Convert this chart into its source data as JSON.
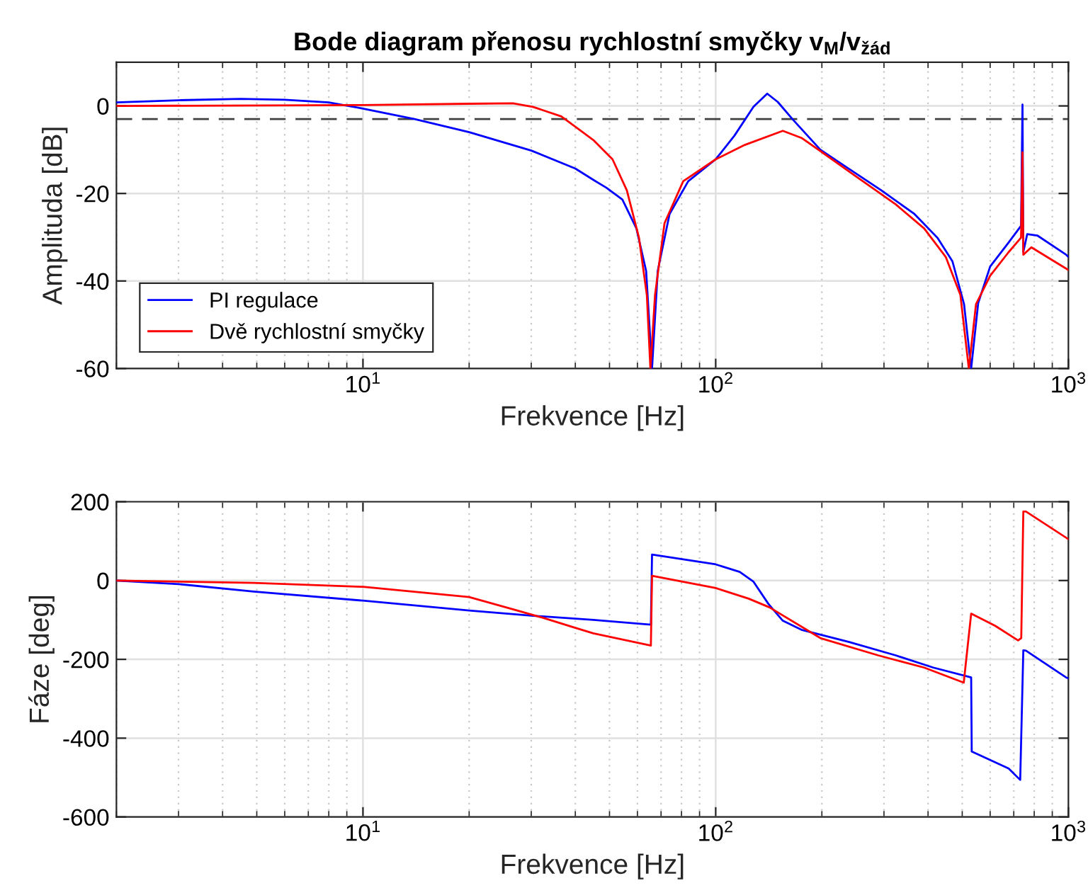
{
  "chart_data": [
    {
      "type": "line",
      "title": "Bode diagram přenosu rychlostní smyčky v$_{M}$/v$_{žád}$",
      "xlabel": "Frekvence [Hz]",
      "ylabel": "Amplituda [dB]",
      "log": "x",
      "grid": true,
      "legend": "bottom left",
      "xlim": [
        2,
        1000
      ],
      "xticks": [
        {
          "value": 10,
          "label": "10$^{1}$"
        },
        {
          "value": 100,
          "label": "10$^{2}$"
        },
        {
          "value": 1000,
          "label": "10$^{3}$"
        }
      ],
      "ylim": [
        -60,
        10
      ],
      "yticks": [
        -60,
        -40,
        -20,
        0
      ],
      "ref_lines": [
        {
          "axis": "y",
          "value": -3,
          "color": "#404040",
          "line_style": "dashed"
        }
      ],
      "series": [
        {
          "name": "PI regulace",
          "color": "#0000ff",
          "x": [
            2,
            3,
            4.5,
            6,
            8,
            10,
            14,
            20,
            30,
            40,
            45,
            49,
            54.4,
            59.6,
            63.5,
            66,
            68.5,
            74,
            83.6,
            100,
            113,
            128,
            140,
            150,
            165,
            198,
            239,
            295,
            366,
            425,
            469,
            506,
            530,
            555,
            600,
            677,
            734,
            741,
            745,
            764,
            816,
            985,
            1000
          ],
          "values": [
            0.8,
            1.3,
            1.6,
            1.4,
            0.8,
            -0.6,
            -3,
            -6,
            -10.2,
            -14.3,
            -16.9,
            -18.7,
            -21.4,
            -28,
            -37.7,
            -60,
            -37.7,
            -24.7,
            -17.2,
            -12.2,
            -6.8,
            -0.2,
            2.8,
            0.9,
            -3,
            -10,
            -14.4,
            -19.3,
            -24.7,
            -30.1,
            -35.5,
            -45.3,
            -60,
            -45,
            -36.7,
            -31.2,
            -27.4,
            0.3,
            -33.4,
            -29.3,
            -29.6,
            -34,
            -34.5
          ]
        },
        {
          "name": "Dvě rychlostní smyčky",
          "color": "#ff0000",
          "x": [
            2,
            10,
            20,
            26.6,
            30.3,
            36.5,
            42.3,
            45,
            51,
            56,
            60.6,
            63.8,
            65.3,
            67.3,
            71.6,
            80.9,
            100,
            121,
            155,
            175,
            198,
            254,
            324,
            390,
            449,
            494,
            522,
            547,
            600,
            677,
            734,
            741,
            745,
            785,
            1000
          ],
          "values": [
            0,
            0.2,
            0.5,
            0.6,
            -0.2,
            -2.4,
            -6.2,
            -7.8,
            -12.2,
            -19.3,
            -30.1,
            -43.2,
            -60,
            -43.2,
            -26.8,
            -17.2,
            -12.2,
            -8.9,
            -5.7,
            -7.3,
            -10.3,
            -16.5,
            -22.5,
            -28,
            -34.5,
            -43.2,
            -60,
            -45.3,
            -38.8,
            -33.4,
            -30.1,
            -10.6,
            -34,
            -32.3,
            -37.5
          ]
        }
      ]
    },
    {
      "type": "line",
      "xlabel": "Frekvence [Hz]",
      "ylabel": "Fáze [deg]",
      "log": "x",
      "grid": true,
      "xlim": [
        2,
        1000
      ],
      "xticks": [
        {
          "value": 10,
          "label": "10$^{1}$"
        },
        {
          "value": 100,
          "label": "10$^{2}$"
        },
        {
          "value": 1000,
          "label": "10$^{3}$"
        }
      ],
      "ylim": [
        -600,
        200
      ],
      "yticks": [
        -600,
        -400,
        -200,
        0,
        200
      ],
      "series": [
        {
          "color": "#0000ff",
          "x": [
            2,
            3,
            4.9,
            10,
            20,
            30,
            45,
            65.5,
            66,
            100,
            117,
            128,
            141,
            155,
            175,
            239,
            324,
            414,
            530,
            532,
            677,
            730,
            745,
            758,
            985,
            1000
          ],
          "values": [
            0,
            -9,
            -28,
            -51,
            -76,
            -89,
            -100,
            -112,
            66,
            41,
            22,
            -3,
            -59,
            -102,
            -125,
            -156,
            -190,
            -221,
            -246,
            -434,
            -477,
            -506,
            -177,
            -178,
            -246,
            -248
          ]
        },
        {
          "color": "#ff0000",
          "x": [
            2,
            4.9,
            10,
            20,
            26.6,
            32.5,
            40,
            45,
            65.5,
            66,
            100,
            124,
            142,
            198,
            289,
            390,
            505,
            530,
            620,
            720,
            735,
            745,
            758,
            1000
          ],
          "values": [
            0,
            -6,
            -16,
            -42,
            -73,
            -95,
            -120,
            -134,
            -165,
            12,
            -19,
            -46,
            -68,
            -146,
            -190,
            -221,
            -259,
            -84,
            -115,
            -152,
            -146,
            175,
            175,
            105
          ]
        }
      ]
    }
  ]
}
